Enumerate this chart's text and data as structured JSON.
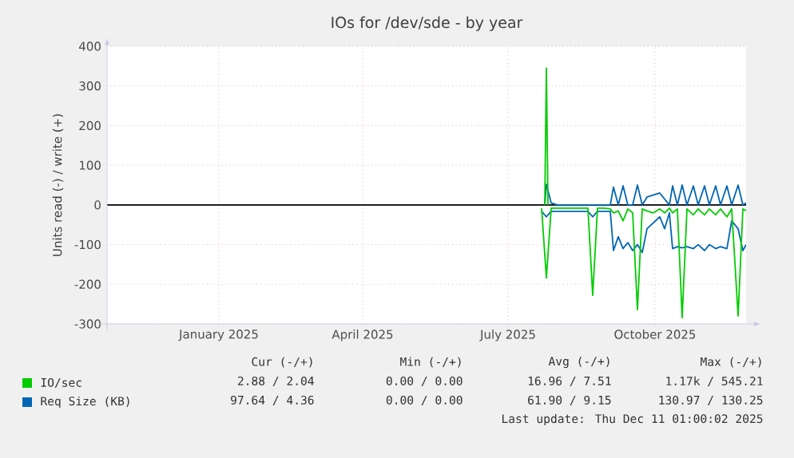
{
  "chart_data": {
    "type": "line",
    "title": "IOs for /dev/sde - by year",
    "ylabel": "Units read (-) / write (+)",
    "x": [
      "2025-08-05",
      "2025-08-08",
      "2025-08-11",
      "2025-08-15",
      "2025-08-20",
      "2025-08-25",
      "2025-08-30",
      "2025-09-03",
      "2025-09-06",
      "2025-09-09",
      "2025-09-13",
      "2025-09-17",
      "2025-09-19",
      "2025-09-22",
      "2025-09-25",
      "2025-09-28",
      "2025-10-01",
      "2025-10-04",
      "2025-10-07",
      "2025-10-10",
      "2025-10-14",
      "2025-10-18",
      "2025-10-21",
      "2025-10-24",
      "2025-10-26",
      "2025-10-29",
      "2025-11-01",
      "2025-11-04",
      "2025-11-08",
      "2025-11-11",
      "2025-11-15",
      "2025-11-18",
      "2025-11-22",
      "2025-11-25",
      "2025-11-29",
      "2025-12-02",
      "2025-12-06",
      "2025-12-09",
      "2025-12-11"
    ],
    "series": [
      {
        "name": "IO/sec",
        "color": "#00cc00",
        "x": [
          "2025-08-07",
          "2025-08-08",
          "2025-08-09"
        ],
        "values": [
          0,
          345,
          0
        ]
      },
      {
        "color": "#00cc00",
        "values": [
          -8,
          -184,
          -8,
          -8,
          -8,
          -8,
          -8,
          -8,
          -228,
          -8,
          -8,
          -10,
          -20,
          -15,
          -40,
          -10,
          -20,
          -264,
          -10,
          -15,
          -20,
          -10,
          -20,
          -8,
          -20,
          -10,
          -284,
          -10,
          -25,
          -10,
          -25,
          -10,
          -25,
          -10,
          -30,
          -10,
          -280,
          -10,
          -15
        ]
      },
      {
        "name": "Req Size (KB)",
        "color": "#0066b3",
        "x": [
          "2025-08-07",
          "2025-08-08",
          "2025-08-11",
          "2025-08-15",
          "2025-08-20",
          "2025-08-25",
          "2025-08-30",
          "2025-09-03",
          "2025-09-06",
          "2025-09-09",
          "2025-09-13",
          "2025-09-17",
          "2025-09-19",
          "2025-09-22",
          "2025-09-25",
          "2025-09-28",
          "2025-10-01",
          "2025-10-04",
          "2025-10-07",
          "2025-10-10",
          "2025-10-14",
          "2025-10-18",
          "2025-10-21",
          "2025-10-24",
          "2025-10-26",
          "2025-10-29",
          "2025-11-01",
          "2025-11-04",
          "2025-11-08",
          "2025-11-11",
          "2025-11-15",
          "2025-11-18",
          "2025-11-22",
          "2025-11-25",
          "2025-11-29",
          "2025-12-02",
          "2025-12-06",
          "2025-12-09",
          "2025-12-11"
        ],
        "values": [
          0,
          52,
          5,
          0,
          0,
          0,
          0,
          0,
          0,
          0,
          0,
          0,
          45,
          0,
          48,
          0,
          0,
          50,
          0,
          20,
          25,
          30,
          15,
          0,
          48,
          0,
          50,
          0,
          48,
          0,
          48,
          0,
          48,
          0,
          48,
          0,
          50,
          0,
          5
        ]
      },
      {
        "color": "#0066b3",
        "values": [
          -16,
          -30,
          -16,
          -16,
          -16,
          -16,
          -16,
          -16,
          -30,
          -16,
          -16,
          -16,
          -115,
          -80,
          -110,
          -95,
          -115,
          -100,
          -120,
          -60,
          -45,
          -30,
          -60,
          -20,
          -110,
          -105,
          -108,
          -105,
          -110,
          -100,
          -115,
          -100,
          -110,
          -105,
          -110,
          -40,
          -60,
          -115,
          -100
        ]
      }
    ],
    "xlim": [
      "2024-11-06",
      "2025-12-11"
    ],
    "xticks": [
      {
        "value": "2025-01-15",
        "label": "January 2025"
      },
      {
        "value": "2025-04-15",
        "label": "April 2025"
      },
      {
        "value": "2025-07-15",
        "label": "July 2025"
      },
      {
        "value": "2025-10-15",
        "label": "October 2025"
      }
    ],
    "ylim": [
      -300,
      400
    ],
    "yticks": [
      -300,
      -200,
      -100,
      0,
      100,
      200,
      300,
      400
    ],
    "grid": true,
    "legend": "bottom left",
    "marker": "none",
    "line_style": "solid",
    "ref_lines": [
      {
        "axis": "y",
        "value": 0,
        "color": "#000000"
      }
    ],
    "annotations": [
      "Cur (-/+)",
      "Min (-/+)",
      "Avg (-/+)",
      "Max (-/+)",
      "2.88 / 2.04",
      "0.00 / 0.00",
      "16.96 / 7.51",
      "1.17k / 545.21",
      "97.64 / 4.36",
      "0.00 / 0.00",
      "61.90 / 9.15",
      "130.97 / 130.25",
      "Last update: Thu Dec 11 01:00:02 2025"
    ]
  }
}
